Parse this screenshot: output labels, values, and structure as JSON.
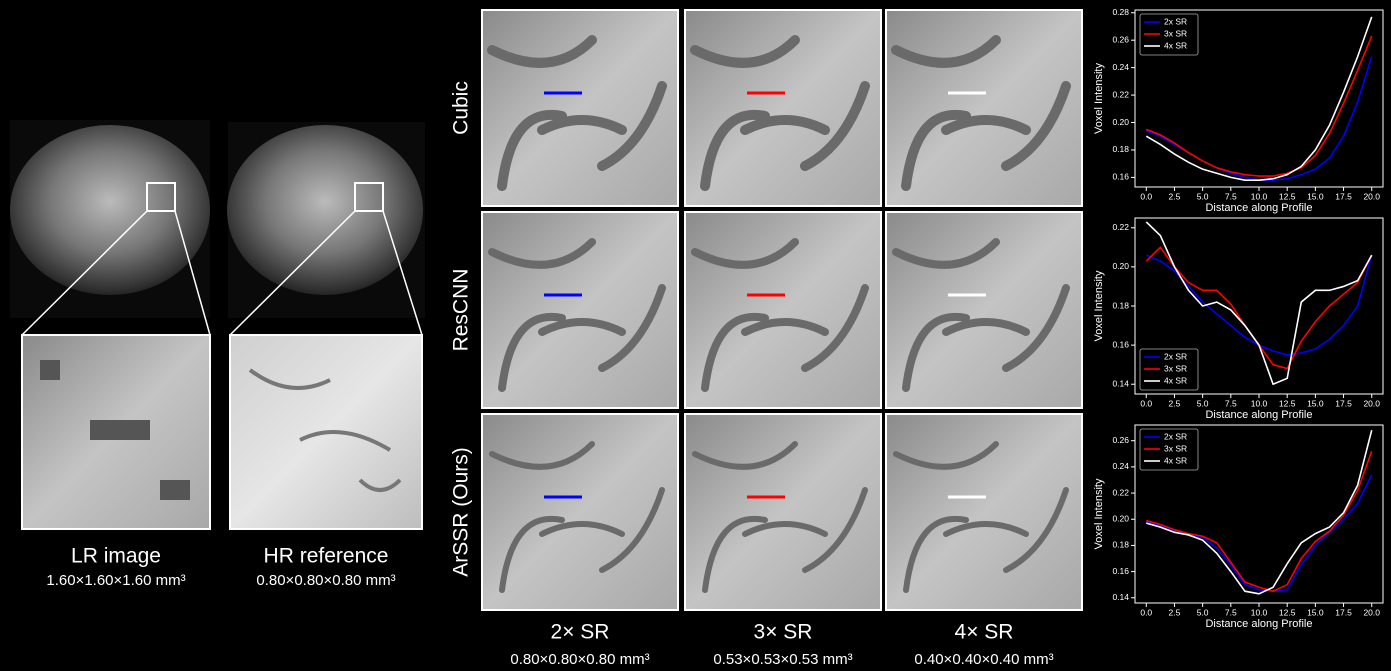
{
  "left": {
    "lr_label": "LR image",
    "lr_res": "1.60×1.60×1.60 mm³",
    "hr_label": "HR reference",
    "hr_res": "0.80×0.80×0.80 mm³"
  },
  "rows": [
    "Cubic",
    "ResCNN",
    "ArSSR (Ours)"
  ],
  "columns": [
    {
      "label": "2× SR",
      "res": "0.80×0.80×0.80 mm³"
    },
    {
      "label": "3× SR",
      "res": "0.53×0.53×0.53 mm³"
    },
    {
      "label": "4× SR",
      "res": "0.40×0.40×0.40 mm³"
    }
  ],
  "chart_data": [
    {
      "type": "line",
      "xlabel": "Distance along Profile",
      "ylabel": "Voxel Intensity",
      "legend": "upper left",
      "x": [
        0,
        1.25,
        2.5,
        3.75,
        5,
        6.25,
        7.5,
        8.75,
        10,
        11.25,
        12.5,
        13.75,
        15,
        16.25,
        17.5,
        18.75,
        20
      ],
      "xlim": [
        -1,
        21
      ],
      "ylim": [
        0.153,
        0.282
      ],
      "xticks": [
        {
          "value": 0,
          "label": "0.0"
        },
        2.5,
        {
          "value": 5,
          "label": "5.0"
        },
        7.5,
        {
          "value": 10,
          "label": "10.0"
        },
        12.5,
        {
          "value": 15,
          "label": "15.0"
        },
        17.5,
        {
          "value": 20,
          "label": "20.0"
        }
      ],
      "yticks": [
        0.16,
        0.18,
        {
          "value": 0.2,
          "label": "0.20"
        },
        0.22,
        0.24,
        0.26,
        0.28
      ],
      "series": [
        {
          "name": "2x SR",
          "color": "#0000ff",
          "values": [
            0.194,
            0.19,
            0.184,
            0.178,
            0.172,
            0.167,
            0.163,
            0.16,
            0.158,
            0.158,
            0.159,
            0.162,
            0.166,
            0.174,
            0.19,
            0.215,
            0.248
          ]
        },
        {
          "name": "3x SR",
          "color": "#ff0000",
          "values": [
            0.195,
            0.191,
            0.185,
            0.178,
            0.172,
            0.167,
            0.164,
            0.162,
            0.161,
            0.161,
            0.163,
            0.167,
            0.176,
            0.192,
            0.214,
            0.238,
            0.263
          ]
        },
        {
          "name": "4x SR",
          "color": "#ffffff",
          "values": [
            0.19,
            0.184,
            0.177,
            0.171,
            0.166,
            0.163,
            0.16,
            0.158,
            0.158,
            0.159,
            0.162,
            0.168,
            0.18,
            0.198,
            0.222,
            0.248,
            0.277
          ]
        }
      ]
    },
    {
      "type": "line",
      "xlabel": "Distance along Profile",
      "ylabel": "Voxel Intensity",
      "legend": "lower left",
      "x": [
        0,
        1.25,
        2.5,
        3.75,
        5,
        6.25,
        7.5,
        8.75,
        10,
        11.25,
        12.5,
        13.75,
        15,
        16.25,
        17.5,
        18.75,
        20
      ],
      "xlim": [
        -1,
        21
      ],
      "ylim": [
        0.135,
        0.225
      ],
      "xticks": [
        {
          "value": 0,
          "label": "0.0"
        },
        2.5,
        {
          "value": 5,
          "label": "5.0"
        },
        7.5,
        {
          "value": 10,
          "label": "10.0"
        },
        12.5,
        {
          "value": 15,
          "label": "15.0"
        },
        17.5,
        {
          "value": 20,
          "label": "20.0"
        }
      ],
      "yticks": [
        0.14,
        0.16,
        0.18,
        {
          "value": 0.2,
          "label": "0.20"
        },
        0.22
      ],
      "series": [
        {
          "name": "2x SR",
          "color": "#0000ff",
          "values": [
            0.206,
            0.203,
            0.198,
            0.19,
            0.182,
            0.176,
            0.17,
            0.164,
            0.16,
            0.157,
            0.155,
            0.156,
            0.158,
            0.163,
            0.17,
            0.18,
            0.206
          ]
        },
        {
          "name": "3x SR",
          "color": "#ff0000",
          "values": [
            0.203,
            0.21,
            0.2,
            0.192,
            0.188,
            0.188,
            0.181,
            0.17,
            0.16,
            0.15,
            0.148,
            0.162,
            0.172,
            0.18,
            0.186,
            0.192,
            0.206
          ]
        },
        {
          "name": "4x SR",
          "color": "#ffffff",
          "values": [
            0.223,
            0.216,
            0.2,
            0.188,
            0.18,
            0.182,
            0.178,
            0.17,
            0.16,
            0.14,
            0.143,
            0.182,
            0.188,
            0.188,
            0.19,
            0.193,
            0.206
          ]
        }
      ]
    },
    {
      "type": "line",
      "xlabel": "Distance along Profile",
      "ylabel": "Voxel Intensity",
      "legend": "upper left",
      "x": [
        0,
        1.25,
        2.5,
        3.75,
        5,
        6.25,
        7.5,
        8.75,
        10,
        11.25,
        12.5,
        13.75,
        15,
        16.25,
        17.5,
        18.75,
        20
      ],
      "xlim": [
        -1,
        21
      ],
      "ylim": [
        0.136,
        0.272
      ],
      "xticks": [
        {
          "value": 0,
          "label": "0.0"
        },
        2.5,
        {
          "value": 5,
          "label": "5.0"
        },
        7.5,
        {
          "value": 10,
          "label": "10.0"
        },
        12.5,
        {
          "value": 15,
          "label": "15.0"
        },
        17.5,
        {
          "value": 20,
          "label": "20.0"
        }
      ],
      "yticks": [
        0.14,
        0.16,
        0.18,
        {
          "value": 0.2,
          "label": "0.20"
        },
        0.22,
        0.24,
        0.26
      ],
      "series": [
        {
          "name": "2x SR",
          "color": "#0000ff",
          "values": [
            0.198,
            0.195,
            0.191,
            0.188,
            0.186,
            0.178,
            0.165,
            0.15,
            0.146,
            0.145,
            0.146,
            0.165,
            0.18,
            0.19,
            0.2,
            0.212,
            0.234
          ]
        },
        {
          "name": "3x SR",
          "color": "#ff0000",
          "values": [
            0.199,
            0.196,
            0.192,
            0.189,
            0.187,
            0.182,
            0.167,
            0.152,
            0.148,
            0.145,
            0.15,
            0.17,
            0.183,
            0.191,
            0.203,
            0.222,
            0.252
          ]
        },
        {
          "name": "4x SR",
          "color": "#ffffff",
          "values": [
            0.197,
            0.194,
            0.19,
            0.188,
            0.184,
            0.174,
            0.16,
            0.145,
            0.143,
            0.148,
            0.166,
            0.182,
            0.189,
            0.194,
            0.205,
            0.226,
            0.268
          ]
        }
      ]
    }
  ]
}
